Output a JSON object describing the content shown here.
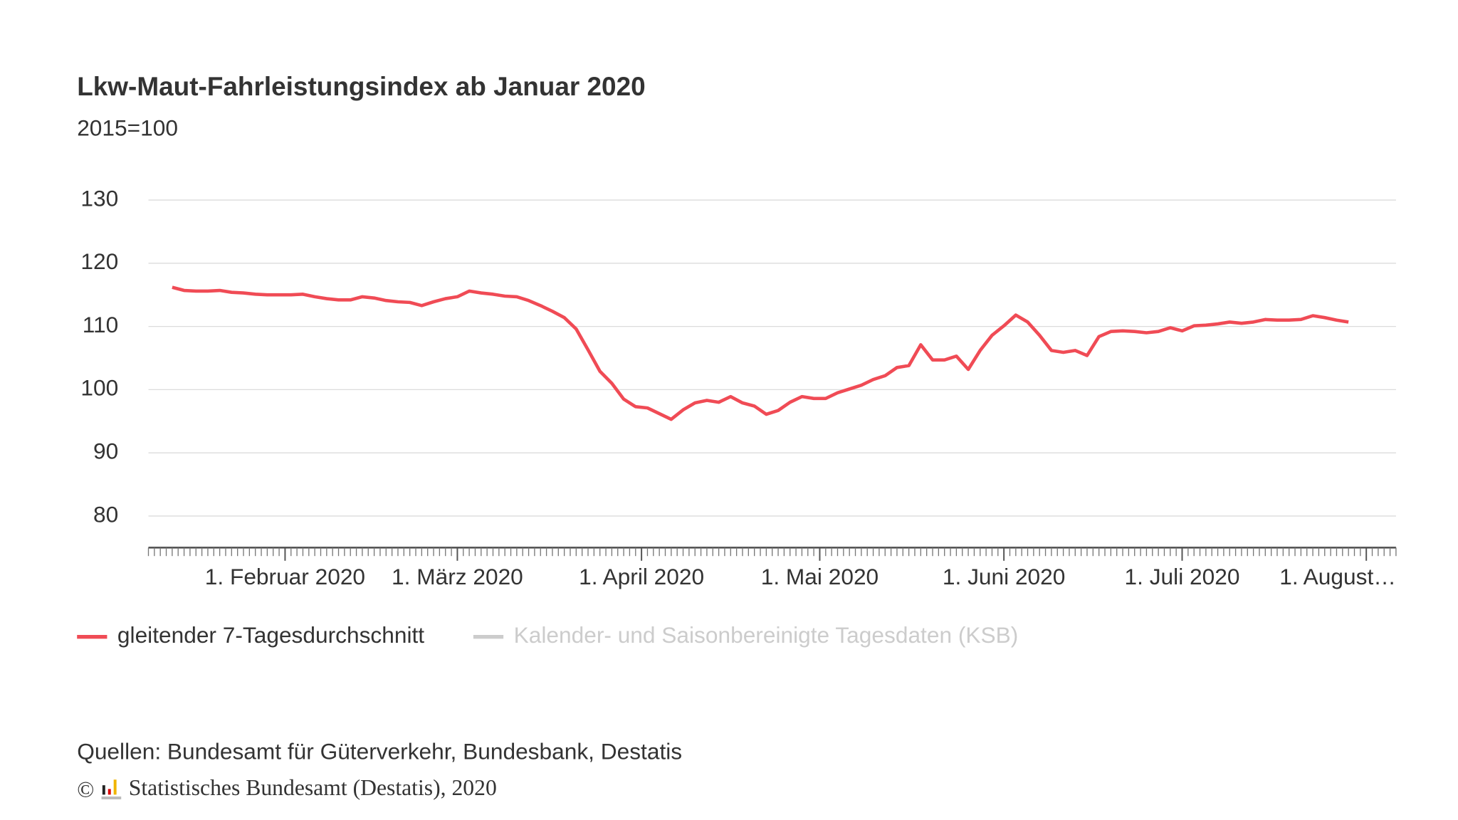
{
  "chart_data": {
    "type": "line",
    "title": "Lkw-Maut-Fahrleistungsindex ab Januar 2020",
    "subtitle": "2015=100",
    "source": "Quellen: Bundesamt für Güterverkehr, Bundesbank, Destatis",
    "copyright_symbol": "©",
    "copyright": "Statistisches Bundesamt (Destatis), 2020",
    "x": [
      "2020-01-13",
      "2020-01-15",
      "2020-01-17",
      "2020-01-19",
      "2020-01-21",
      "2020-01-23",
      "2020-01-25",
      "2020-01-27",
      "2020-01-29",
      "2020-01-31",
      "2020-02-02",
      "2020-02-04",
      "2020-02-06",
      "2020-02-08",
      "2020-02-10",
      "2020-02-12",
      "2020-02-14",
      "2020-02-16",
      "2020-02-18",
      "2020-02-20",
      "2020-02-22",
      "2020-02-24",
      "2020-02-26",
      "2020-02-28",
      "2020-03-01",
      "2020-03-03",
      "2020-03-05",
      "2020-03-07",
      "2020-03-09",
      "2020-03-11",
      "2020-03-13",
      "2020-03-15",
      "2020-03-17",
      "2020-03-19",
      "2020-03-21",
      "2020-03-23",
      "2020-03-25",
      "2020-03-27",
      "2020-03-29",
      "2020-03-31",
      "2020-04-02",
      "2020-04-04",
      "2020-04-06",
      "2020-04-08",
      "2020-04-10",
      "2020-04-12",
      "2020-04-14",
      "2020-04-16",
      "2020-04-18",
      "2020-04-20",
      "2020-04-22",
      "2020-04-24",
      "2020-04-26",
      "2020-04-28",
      "2020-04-30",
      "2020-05-02",
      "2020-05-04",
      "2020-05-06",
      "2020-05-08",
      "2020-05-10",
      "2020-05-12",
      "2020-05-14",
      "2020-05-16",
      "2020-05-18",
      "2020-05-20",
      "2020-05-22",
      "2020-05-24",
      "2020-05-26",
      "2020-05-28",
      "2020-05-30",
      "2020-06-01",
      "2020-06-03",
      "2020-06-05",
      "2020-06-07",
      "2020-06-09",
      "2020-06-11",
      "2020-06-13",
      "2020-06-15",
      "2020-06-17",
      "2020-06-19",
      "2020-06-21",
      "2020-06-23",
      "2020-06-25",
      "2020-06-27",
      "2020-06-29",
      "2020-07-01",
      "2020-07-03",
      "2020-07-05",
      "2020-07-07",
      "2020-07-09",
      "2020-07-11",
      "2020-07-13",
      "2020-07-15",
      "2020-07-17",
      "2020-07-19",
      "2020-07-21",
      "2020-07-23",
      "2020-07-25",
      "2020-07-27",
      "2020-07-29"
    ],
    "series": [
      {
        "name": "gleitender 7-Tagesdurchschnitt",
        "color": "#f04b55",
        "values": [
          116.2,
          115.7,
          115.6,
          115.6,
          115.7,
          115.4,
          115.3,
          115.1,
          115.0,
          115.0,
          115.0,
          115.1,
          114.7,
          114.4,
          114.2,
          114.2,
          114.7,
          114.5,
          114.1,
          113.9,
          113.8,
          113.3,
          113.9,
          114.4,
          114.7,
          115.6,
          115.3,
          115.1,
          114.8,
          114.7,
          114.1,
          113.3,
          112.4,
          111.4,
          109.6,
          106.3,
          102.9,
          101.0,
          98.5,
          97.3,
          97.1,
          96.2,
          95.3,
          96.8,
          97.9,
          98.3,
          98.0,
          98.9,
          97.9,
          97.4,
          96.1,
          96.7,
          98.0,
          98.9,
          98.6,
          98.6,
          99.5,
          100.1,
          100.7,
          101.6,
          102.2,
          103.5,
          103.8,
          107.1,
          104.7,
          104.7,
          105.3,
          103.2,
          106.2,
          108.6,
          110.1,
          111.8,
          110.7,
          108.6,
          106.2,
          105.9,
          106.2,
          105.4,
          108.4,
          109.2,
          109.3,
          109.2,
          109.0,
          109.2,
          109.8,
          109.3,
          110.1,
          110.2,
          110.4,
          110.7,
          110.5,
          110.7,
          111.1,
          111.0,
          111.0,
          111.1,
          111.7,
          111.4,
          111.0,
          110.7
        ]
      },
      {
        "name": "Kalender- und Saisonbereinigte Tagesdaten (KSB)",
        "color": "#cccccc",
        "visible": false
      }
    ],
    "xlim": [
      "2020-01-09",
      "2020-08-06"
    ],
    "xticks": [
      {
        "value": "2020-02-01",
        "label": "1. Februar 2020"
      },
      {
        "value": "2020-03-01",
        "label": "1. März 2020"
      },
      {
        "value": "2020-04-01",
        "label": "1. April 2020"
      },
      {
        "value": "2020-05-01",
        "label": "1. Mai 2020"
      },
      {
        "value": "2020-06-01",
        "label": "1. Juni 2020"
      },
      {
        "value": "2020-07-01",
        "label": "1. Juli 2020"
      },
      {
        "value": "2020-08-01",
        "label": "1. August…"
      }
    ],
    "ylim": [
      75,
      130
    ],
    "yticks": [
      80,
      90,
      100,
      110,
      120,
      130
    ],
    "grid": true,
    "legend": "bottom-left"
  }
}
